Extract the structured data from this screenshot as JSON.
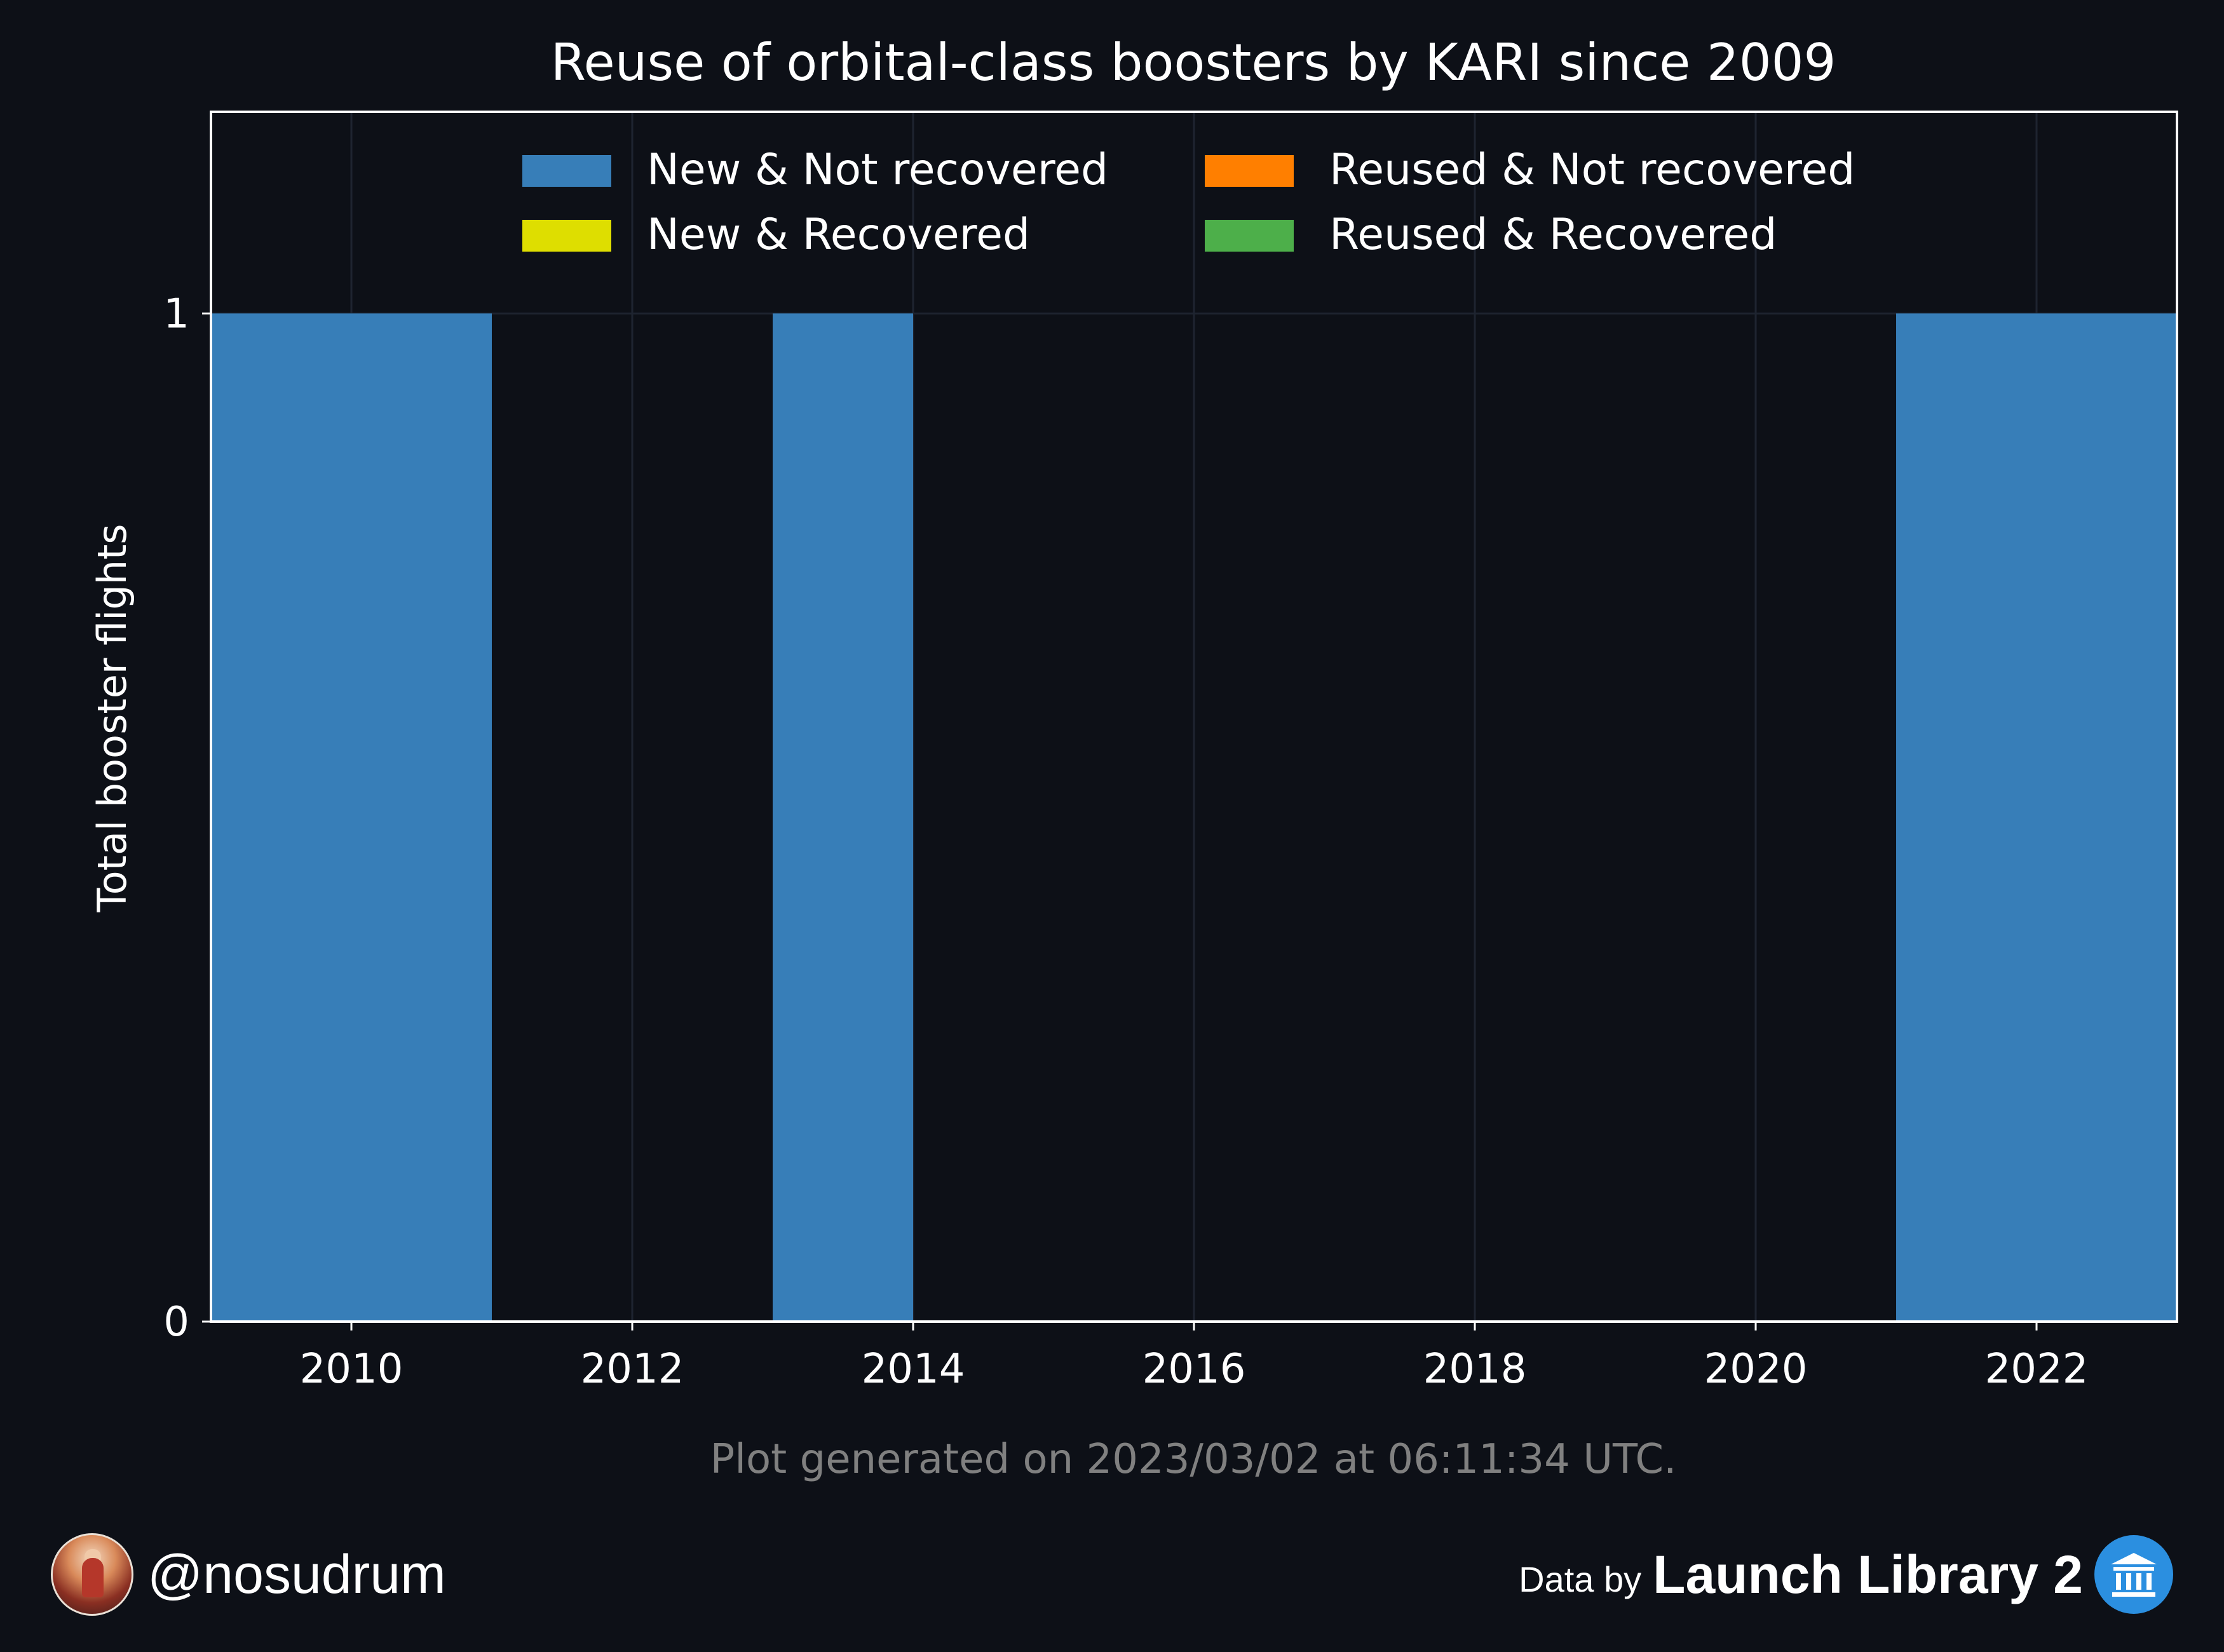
{
  "chart_data": {
    "type": "bar",
    "stacked": true,
    "title": "Reuse of orbital-class boosters by KARI since 2009",
    "xlabel": "",
    "ylabel": "Total booster flights",
    "xlim": [
      2009,
      2023
    ],
    "ylim": [
      0,
      1.2
    ],
    "xticks": [
      2010,
      2012,
      2014,
      2016,
      2018,
      2020,
      2022
    ],
    "yticks": [
      0,
      1
    ],
    "grid": true,
    "legend_position": "top",
    "series": [
      {
        "name": "New & Not recovered",
        "color": "#377eb8",
        "bars": [
          {
            "x_start": 2009,
            "x_end": 2011,
            "value": 1
          },
          {
            "x_start": 2013,
            "x_end": 2014,
            "value": 1
          },
          {
            "x_start": 2021,
            "x_end": 2023,
            "value": 1
          }
        ]
      },
      {
        "name": "New & Recovered",
        "color": "#dede00",
        "bars": []
      },
      {
        "name": "Reused & Not recovered",
        "color": "#ff7f00",
        "bars": []
      },
      {
        "name": "Reused & Recovered",
        "color": "#4daf4a",
        "bars": []
      }
    ]
  },
  "footer": {
    "generated_text": "Plot generated on 2023/03/02 at 06:11:34 UTC.",
    "handle": "@nosudrum",
    "data_by": "Data by",
    "source": "Launch Library 2",
    "avatar_icon": "astronaut-avatar-icon",
    "source_icon": "museum-icon"
  },
  "colors": {
    "background": "#0d1017",
    "text": "#ffffff",
    "muted_text": "#808080",
    "grid": "#1e2430"
  }
}
